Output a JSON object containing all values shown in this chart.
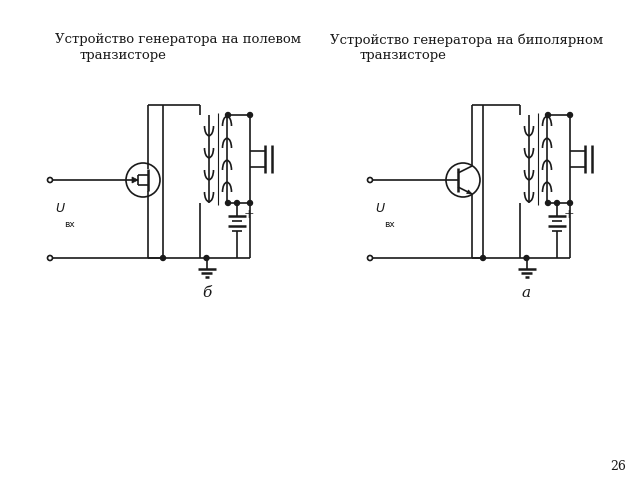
{
  "title_left_1": "Устройство генератора на полевом",
  "title_left_2": "транзисторе",
  "title_right_1": "Устройство генератора на биполярном",
  "title_right_2": "транзисторе",
  "label_left": "б",
  "label_right": "а",
  "page_number": "26",
  "line_color": "#1a1a1a",
  "bg_color": "#ffffff",
  "lw": 1.2,
  "lw_thick": 1.8,
  "lw_comp": 1.5
}
